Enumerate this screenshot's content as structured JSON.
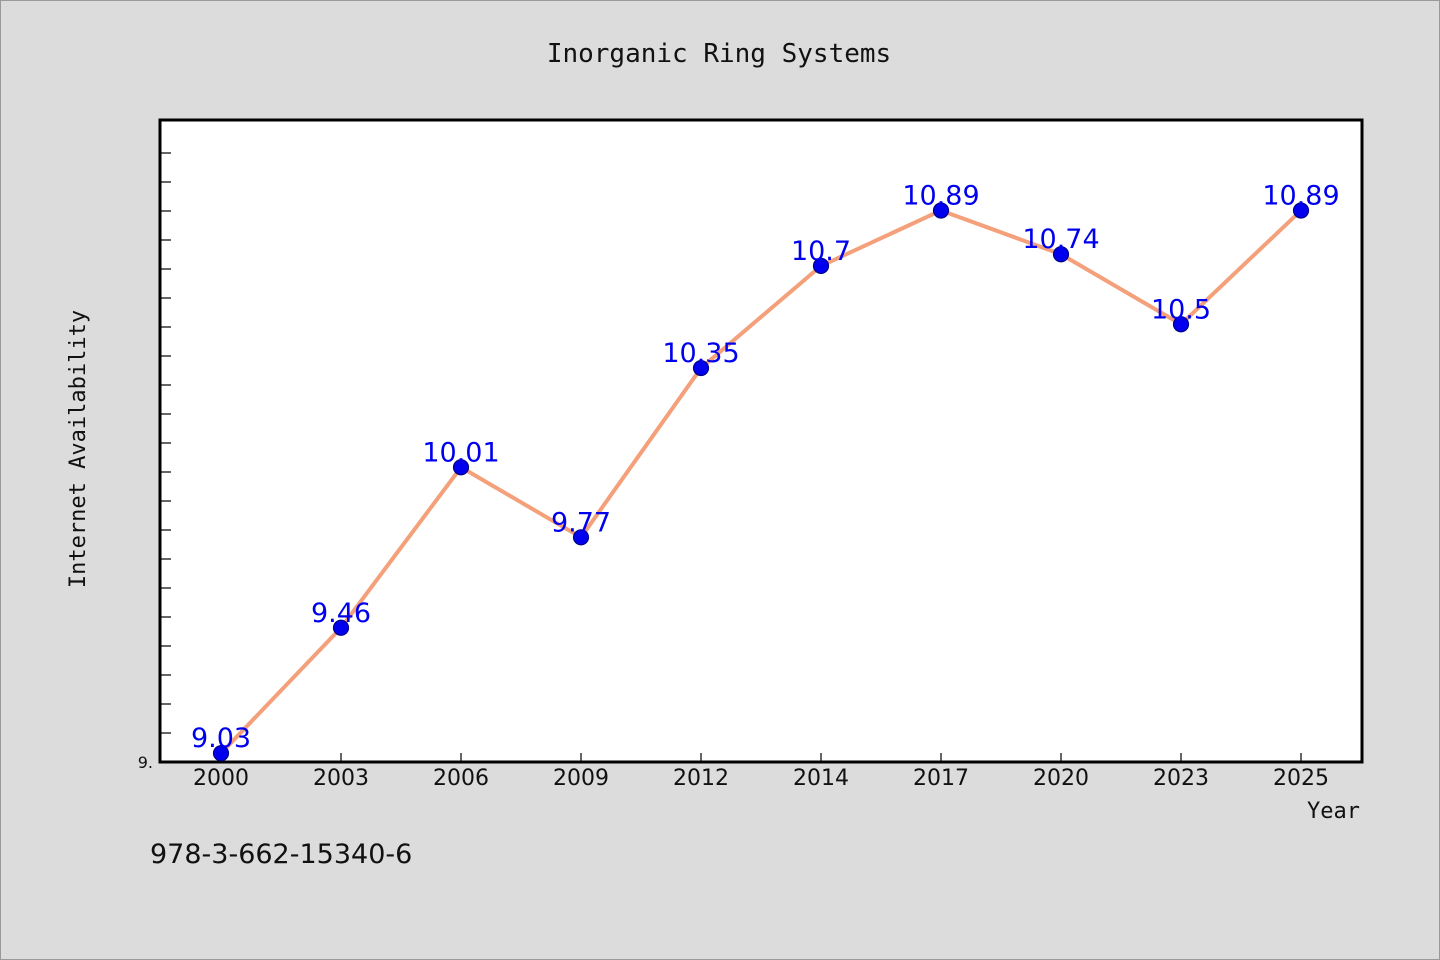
{
  "chart_data": {
    "type": "line",
    "title": "Inorganic Ring Systems",
    "xlabel": "Year",
    "ylabel": "Internet Availability",
    "categories": [
      "2000",
      "2003",
      "2006",
      "2009",
      "2012",
      "2014",
      "2017",
      "2020",
      "2023",
      "2025"
    ],
    "series": [
      {
        "values": [
          9.03,
          9.46,
          10.01,
          9.77,
          10.35,
          10.7,
          10.89,
          10.74,
          10.5,
          10.89
        ],
        "labels": [
          "9.03",
          "9.46",
          "10.01",
          "9.77",
          "10.35",
          "10.7",
          "10.89",
          "10.74",
          "10.5",
          "10.89"
        ]
      }
    ],
    "ylim": [
      9.0,
      11.2
    ],
    "y_tick_label": "9.",
    "grid": false,
    "line_color": "#f4a07a",
    "marker_color": "#0000ee",
    "label_color": "#0000ee"
  },
  "footnote": "978-3-662-15340-6"
}
